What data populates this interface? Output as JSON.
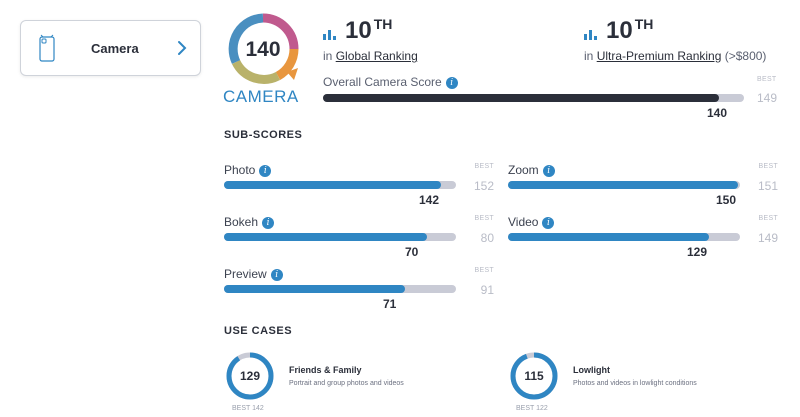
{
  "sidebar": {
    "item_label": "Camera"
  },
  "badge": {
    "score": "140",
    "label": "CAMERA"
  },
  "global_rank": {
    "rank": "10",
    "suffix": "TH",
    "prefix": "in",
    "link": "Global Ranking"
  },
  "segment_rank": {
    "rank": "10",
    "suffix": "TH",
    "prefix": "in",
    "link": "Ultra-Premium Ranking",
    "note": "(>$800)"
  },
  "overall": {
    "label": "Overall Camera Score",
    "score": 140,
    "best_label": "BEST",
    "best": 149
  },
  "sub_scores_title": "SUB-SCORES",
  "sub_scores": [
    {
      "name": "Photo",
      "score": 142,
      "best_label": "BEST",
      "best": 152
    },
    {
      "name": "Zoom",
      "score": 150,
      "best_label": "BEST",
      "best": 151
    },
    {
      "name": "Bokeh",
      "score": 70,
      "best_label": "BEST",
      "best": 80
    },
    {
      "name": "Video",
      "score": 129,
      "best_label": "BEST",
      "best": 149
    },
    {
      "name": "Preview",
      "score": 71,
      "best_label": "BEST",
      "best": 91
    }
  ],
  "use_cases_title": "USE CASES",
  "use_cases": [
    {
      "score": 129,
      "best_text": "BEST 142",
      "best": 142,
      "title": "Friends & Family",
      "desc": "Portrait and group photos and videos"
    },
    {
      "score": 115,
      "best_text": "BEST 122",
      "best": 122,
      "title": "Lowlight",
      "desc": "Photos and videos in lowlight conditions"
    }
  ],
  "colors": {
    "accent": "#2f86c3",
    "dark": "#2b2f3a",
    "track": "#c9cbd6",
    "muted": "#b9bcc7"
  }
}
